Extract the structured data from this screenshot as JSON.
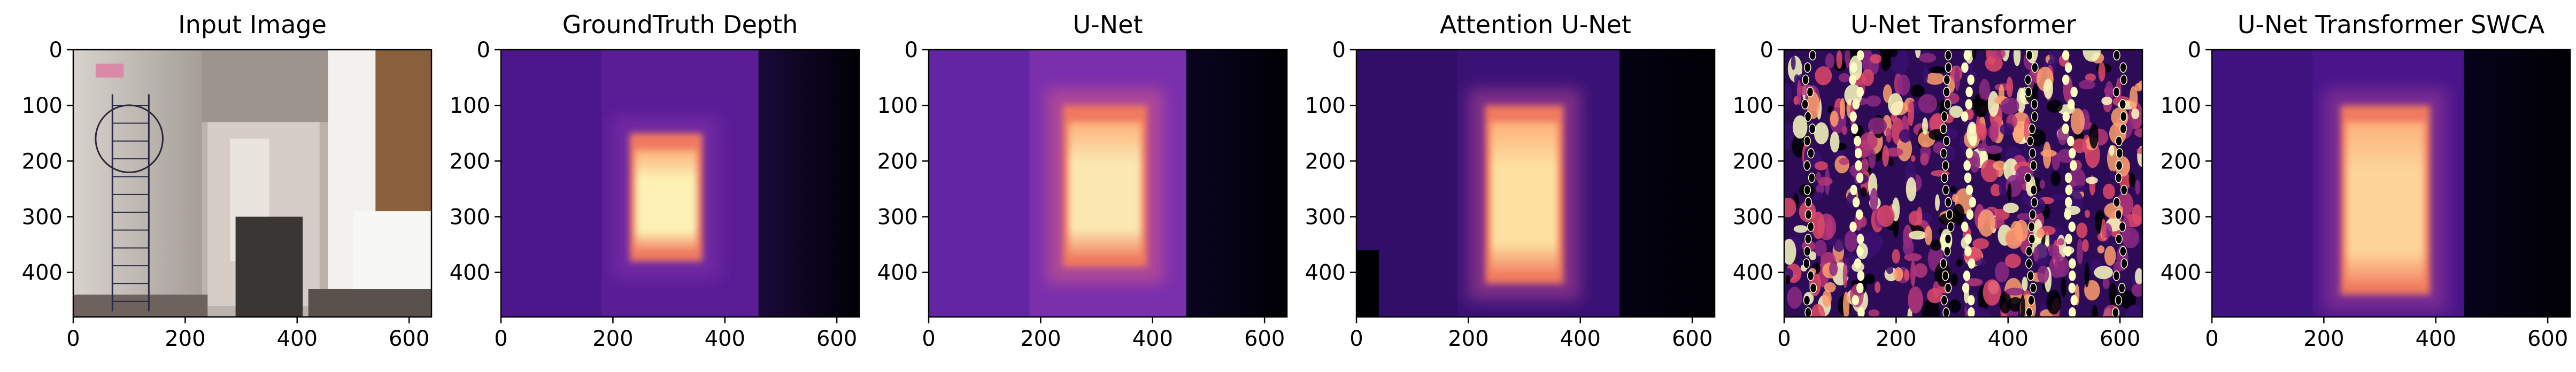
{
  "figure": {
    "panels": [
      {
        "title": "Input Image",
        "kind": "photo"
      },
      {
        "title": "GroundTruth Depth",
        "kind": "depth-gt"
      },
      {
        "title": "U-Net",
        "kind": "depth-unet"
      },
      {
        "title": "Attention U-Net",
        "kind": "depth-attn"
      },
      {
        "title": "U-Net Transformer",
        "kind": "depth-noisy"
      },
      {
        "title": "U-Net Transformer SWCA",
        "kind": "depth-swca"
      }
    ],
    "axes": {
      "x_ticks": [
        0,
        200,
        400,
        600
      ],
      "y_ticks": [
        0,
        100,
        200,
        300,
        400
      ],
      "x_range": [
        0,
        640
      ],
      "y_range": [
        0,
        480
      ]
    },
    "colors": {
      "colormap": "magma",
      "axis": "#000000",
      "background": "#ffffff"
    }
  }
}
